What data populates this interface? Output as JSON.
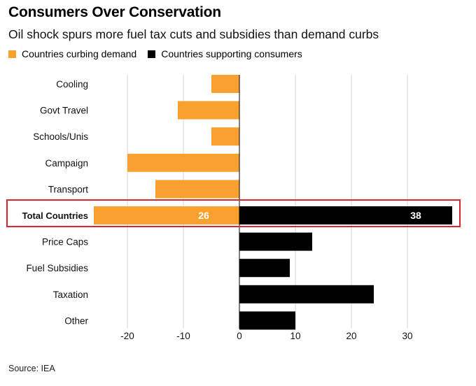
{
  "title": "Consumers Over Conservation",
  "subtitle": "Oil shock spurs more fuel tax cuts and subsidies than demand curbs",
  "legend": [
    {
      "label": "Countries curbing demand",
      "color": "#f9a12e"
    },
    {
      "label": "Countries supporting consumers",
      "color": "#000000"
    }
  ],
  "source": "Source: IEA",
  "highlight_row": "Total Countries",
  "chart_data": {
    "type": "bar",
    "orientation": "horizontal",
    "title": "Consumers Over Conservation",
    "xlim": [
      -26,
      38
    ],
    "xticks": [
      -20,
      -10,
      0,
      10,
      20,
      30
    ],
    "grid": true,
    "categories": [
      "Cooling",
      "Govt Travel",
      "Schools/Unis",
      "Campaign",
      "Transport",
      "Total Countries",
      "Price Caps",
      "Fuel Subsidies",
      "Taxation",
      "Other"
    ],
    "series": [
      {
        "name": "Countries curbing demand",
        "color": "#f9a12e",
        "values": [
          -5,
          -11,
          -5,
          -20,
          -15,
          -26,
          0,
          0,
          0,
          0
        ]
      },
      {
        "name": "Countries supporting consumers",
        "color": "#000000",
        "values": [
          0,
          0,
          0,
          0,
          0,
          38,
          13,
          9,
          24,
          10
        ]
      }
    ],
    "data_labels": [
      {
        "category": "Total Countries",
        "series": "Countries curbing demand",
        "text": "26"
      },
      {
        "category": "Total Countries",
        "series": "Countries supporting consumers",
        "text": "38"
      }
    ]
  }
}
